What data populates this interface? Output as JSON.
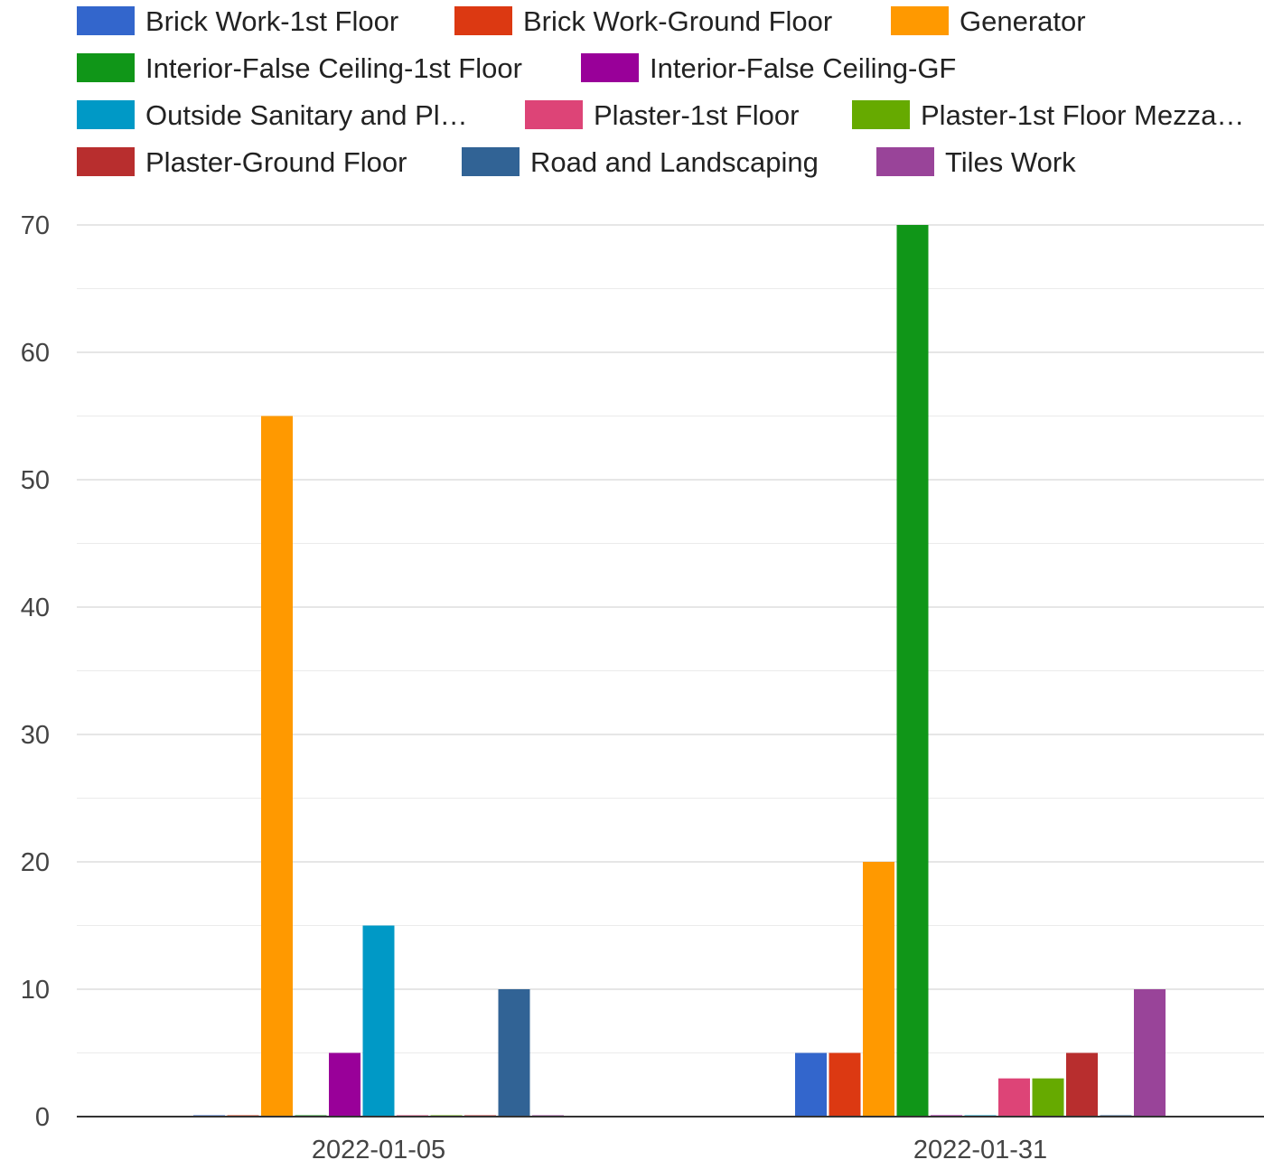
{
  "chart_data": {
    "type": "bar",
    "title": "",
    "xlabel": "",
    "ylabel": "",
    "ylim": [
      0,
      70
    ],
    "yticks": [
      0,
      10,
      20,
      30,
      40,
      50,
      60,
      70
    ],
    "grid": true,
    "legend_position": "top",
    "categories": [
      "2022-01-05",
      "2022-01-31"
    ],
    "series": [
      {
        "name": "Brick Work-1st Floor",
        "legend_label": "Brick Work-1st Floor",
        "color": "#3366cc",
        "values": [
          0,
          5
        ]
      },
      {
        "name": "Brick Work-Ground Floor",
        "legend_label": "Brick Work-Ground Floor",
        "color": "#dc3912",
        "values": [
          0,
          5
        ]
      },
      {
        "name": "Generator",
        "legend_label": "Generator",
        "color": "#ff9900",
        "values": [
          55,
          20
        ]
      },
      {
        "name": "Interior-False Ceiling-1st Floor",
        "legend_label": "Interior-False Ceiling-1st Floor",
        "color": "#109618",
        "values": [
          0,
          70
        ]
      },
      {
        "name": "Interior-False Ceiling-GF",
        "legend_label": "Interior-False Ceiling-GF",
        "color": "#990099",
        "values": [
          5,
          0
        ]
      },
      {
        "name": "Outside Sanitary and Pl…",
        "legend_label": "Outside Sanitary and Pl…",
        "color": "#0099c6",
        "values": [
          15,
          0
        ]
      },
      {
        "name": "Plaster-1st Floor",
        "legend_label": "Plaster-1st Floor",
        "color": "#dd4477",
        "values": [
          0,
          3
        ]
      },
      {
        "name": "Plaster-1st Floor Mezza…",
        "legend_label": "Plaster-1st Floor Mezza…",
        "color": "#66aa00",
        "values": [
          0,
          3
        ]
      },
      {
        "name": "Plaster-Ground Floor",
        "legend_label": "Plaster-Ground Floor",
        "color": "#b82e2e",
        "values": [
          0,
          5
        ]
      },
      {
        "name": "Road and Landscaping",
        "legend_label": "Road and Landscaping",
        "color": "#316395",
        "values": [
          10,
          0
        ]
      },
      {
        "name": "Tiles Work",
        "legend_label": "Tiles Work",
        "color": "#994499",
        "values": [
          0,
          10
        ]
      }
    ]
  }
}
